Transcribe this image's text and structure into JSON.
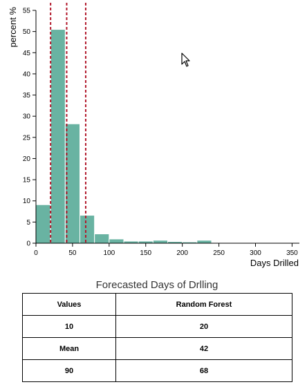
{
  "chart_data": {
    "type": "bar",
    "xlabel": "Days Drilled",
    "ylabel": "percent %",
    "xlim": [
      0,
      360
    ],
    "ylim": [
      0,
      55
    ],
    "x_ticks": [
      0,
      50,
      100,
      150,
      200,
      250,
      300,
      350
    ],
    "y_ticks": [
      0,
      5,
      10,
      15,
      20,
      25,
      30,
      35,
      40,
      45,
      50,
      55
    ],
    "bin_width": 20,
    "bins": [
      {
        "x0": 0,
        "x1": 20,
        "value": 9.1
      },
      {
        "x0": 20,
        "x1": 40,
        "value": 50.5
      },
      {
        "x0": 40,
        "x1": 60,
        "value": 28.2
      },
      {
        "x0": 60,
        "x1": 80,
        "value": 6.6
      },
      {
        "x0": 80,
        "x1": 100,
        "value": 2.2
      },
      {
        "x0": 100,
        "x1": 120,
        "value": 1.0
      },
      {
        "x0": 120,
        "x1": 140,
        "value": 0.5
      },
      {
        "x0": 140,
        "x1": 160,
        "value": 0.5
      },
      {
        "x0": 160,
        "x1": 180,
        "value": 0.7
      },
      {
        "x0": 180,
        "x1": 200,
        "value": 0.4
      },
      {
        "x0": 200,
        "x1": 220,
        "value": 0.3
      },
      {
        "x0": 220,
        "x1": 240,
        "value": 0.7
      }
    ],
    "reference_lines": [
      20,
      42,
      68
    ],
    "bar_color": "#69b3a2",
    "reference_line_color": "#b2182b",
    "grid": false
  },
  "table": {
    "title": "Forecasted Days of Drlling",
    "headers": [
      "Values",
      "Random Forest"
    ],
    "rows": [
      [
        "10",
        "20"
      ],
      [
        "Mean",
        "42"
      ],
      [
        "90",
        "68"
      ]
    ]
  },
  "icons": {
    "cursor": "mouse-pointer-icon"
  }
}
